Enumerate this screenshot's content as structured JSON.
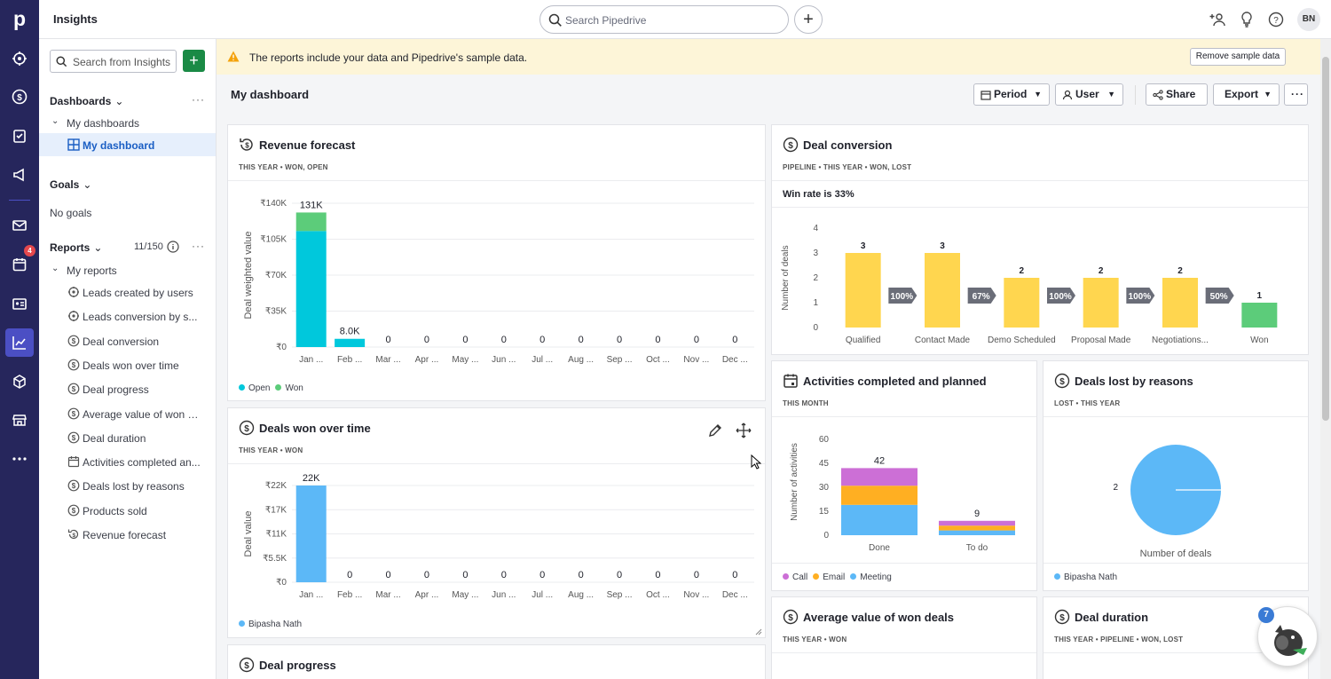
{
  "app": {
    "title": "Insights",
    "logo_letter": "p",
    "activities_badge": "4",
    "user_initials": "BN"
  },
  "search": {
    "placeholder": "Search Pipedrive"
  },
  "sidebar": {
    "search_placeholder": "Search from Insights",
    "dashboards_label": "Dashboards",
    "my_dashboards_label": "My dashboards",
    "my_dashboard_label": "My dashboard",
    "goals_label": "Goals",
    "no_goals": "No goals",
    "reports_label": "Reports",
    "reports_count": "11/150",
    "my_reports_label": "My reports",
    "reports": [
      {
        "label": "Leads created by users",
        "icon": "target-icon"
      },
      {
        "label": "Leads conversion by s...",
        "icon": "target-icon"
      },
      {
        "label": "Deal conversion",
        "icon": "dollar-icon"
      },
      {
        "label": "Deals won over time",
        "icon": "dollar-icon"
      },
      {
        "label": "Deal progress",
        "icon": "dollar-icon"
      },
      {
        "label": "Average value of won d...",
        "icon": "dollar-icon"
      },
      {
        "label": "Deal duration",
        "icon": "dollar-icon"
      },
      {
        "label": "Activities completed an...",
        "icon": "calendar-icon"
      },
      {
        "label": "Deals lost by reasons",
        "icon": "dollar-icon"
      },
      {
        "label": "Products sold",
        "icon": "dollar-icon"
      },
      {
        "label": "Revenue forecast",
        "icon": "forecast-icon"
      }
    ]
  },
  "notice": {
    "text": "The reports include your data and Pipedrive's sample data.",
    "remove_label": "Remove sample data"
  },
  "dashboard": {
    "title": "My dashboard",
    "period_label": "Period",
    "user_label": "User",
    "share_label": "Share",
    "export_label": "Export"
  },
  "colors": {
    "open": "#00c8dc",
    "won": "#5ccc7a",
    "bar_blue": "#5cb8f7",
    "yellow": "#ffd64f",
    "call": "#cc6fd6",
    "email": "#ffaf22",
    "meeting": "#5cb8f7",
    "pie": "#5cb8f7",
    "brand": "#26265c",
    "accent": "#1a8a45"
  },
  "cards": {
    "revenue": {
      "title": "Revenue forecast",
      "sub": "THIS YEAR  •  WON, OPEN"
    },
    "deals_won": {
      "title": "Deals won over time",
      "sub": "THIS YEAR  •  WON"
    },
    "deal_progress": {
      "title": "Deal progress"
    },
    "conversion": {
      "title": "Deal conversion",
      "sub": "PIPELINE  •  THIS YEAR  •  WON, LOST",
      "win_rate": "Win rate is 33%"
    },
    "activities": {
      "title": "Activities completed and planned",
      "sub": "THIS MONTH"
    },
    "lost": {
      "title": "Deals lost by reasons",
      "sub": "LOST  •  THIS YEAR"
    },
    "avg_value": {
      "title": "Average value of won deals",
      "sub": "THIS YEAR  •  WON"
    },
    "duration": {
      "title": "Deal duration",
      "sub": "THIS YEAR  •  PIPELINE  •  WON, LOST"
    }
  },
  "fab": {
    "count": "7"
  },
  "chart_data": [
    {
      "type": "bar",
      "title": "Revenue forecast",
      "ylabel": "Deal weighted value",
      "yticks": [
        "₹0",
        "₹35K",
        "₹70K",
        "₹105K",
        "₹140K"
      ],
      "ylim": [
        0,
        140000
      ],
      "categories": [
        "Jan ...",
        "Feb ...",
        "Mar ...",
        "Apr ...",
        "May ...",
        "Jun ...",
        "Jul ...",
        "Aug ...",
        "Sep ...",
        "Oct ...",
        "Nov ...",
        "Dec ..."
      ],
      "series": [
        {
          "name": "Open",
          "values": [
            113000,
            8000,
            0,
            0,
            0,
            0,
            0,
            0,
            0,
            0,
            0,
            0
          ]
        },
        {
          "name": "Won",
          "values": [
            18000,
            0,
            0,
            0,
            0,
            0,
            0,
            0,
            0,
            0,
            0,
            0
          ]
        }
      ],
      "labels": [
        "131K",
        "8.0K",
        "0",
        "0",
        "0",
        "0",
        "0",
        "0",
        "0",
        "0",
        "0",
        "0"
      ],
      "legend": [
        "Open",
        "Won"
      ]
    },
    {
      "type": "bar",
      "title": "Deals won over time",
      "ylabel": "Deal value",
      "yticks": [
        "₹0",
        "₹5.5K",
        "₹11K",
        "₹17K",
        "₹22K"
      ],
      "ylim": [
        0,
        22000
      ],
      "categories": [
        "Jan ...",
        "Feb ...",
        "Mar ...",
        "Apr ...",
        "May ...",
        "Jun ...",
        "Jul ...",
        "Aug ...",
        "Sep ...",
        "Oct ...",
        "Nov ...",
        "Dec ..."
      ],
      "series": [
        {
          "name": "Bipasha Nath",
          "values": [
            22000,
            0,
            0,
            0,
            0,
            0,
            0,
            0,
            0,
            0,
            0,
            0
          ]
        }
      ],
      "labels": [
        "22K",
        "0",
        "0",
        "0",
        "0",
        "0",
        "0",
        "0",
        "0",
        "0",
        "0",
        "0"
      ],
      "legend": [
        "Bipasha Nath"
      ]
    },
    {
      "type": "bar",
      "title": "Deal conversion",
      "ylabel": "Number of deals",
      "yticks": [
        "0",
        "1",
        "2",
        "3",
        "4"
      ],
      "ylim": [
        0,
        4
      ],
      "categories": [
        "Qualified",
        "Contact Made",
        "Demo Scheduled",
        "Proposal Made",
        "Negotiations...",
        "Won"
      ],
      "values": [
        3,
        3,
        2,
        2,
        2,
        1
      ],
      "conversion_rates": [
        "100%",
        "67%",
        "100%",
        "100%",
        "50%"
      ]
    },
    {
      "type": "bar",
      "title": "Activities completed and planned",
      "ylabel": "Number of activities",
      "yticks": [
        "0",
        "15",
        "30",
        "45",
        "60"
      ],
      "ylim": [
        0,
        60
      ],
      "categories": [
        "Done",
        "To do"
      ],
      "series": [
        {
          "name": "Meeting",
          "values": [
            19,
            3
          ]
        },
        {
          "name": "Email",
          "values": [
            12,
            3
          ]
        },
        {
          "name": "Call",
          "values": [
            11,
            3
          ]
        }
      ],
      "totals": [
        "42",
        "9"
      ],
      "legend": [
        "Call",
        "Email",
        "Meeting"
      ]
    },
    {
      "type": "pie",
      "title": "Deals lost by reasons",
      "values": [
        2
      ],
      "labels": [
        "2"
      ],
      "xlabel": "Number of deals",
      "legend": [
        "Bipasha Nath"
      ]
    }
  ]
}
